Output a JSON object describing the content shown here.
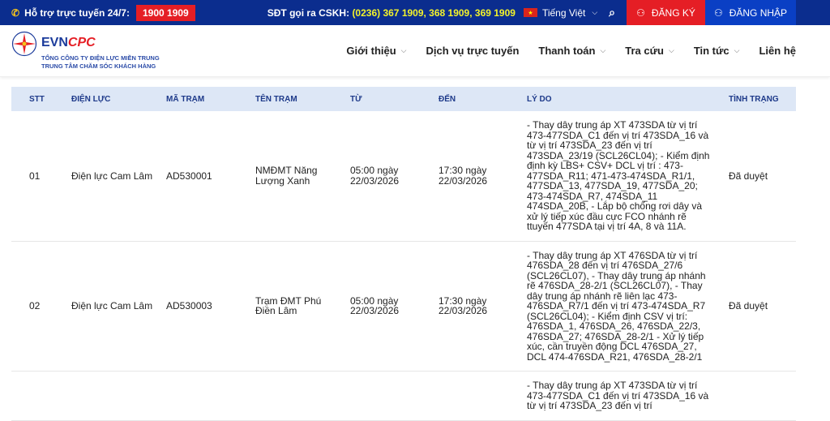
{
  "topbar": {
    "support_label": "Hỗ trợ trực tuyến 24/7:",
    "hotline": "1900 1909",
    "cskh_label": "SĐT gọi ra CSKH:",
    "cskh_numbers": "(0236) 367 1909, 368 1909, 369 1909",
    "language": "Tiếng Việt",
    "register": "ĐĂNG KÝ",
    "login": "ĐĂNG NHẬP"
  },
  "logo": {
    "brand_a": "EVN",
    "brand_b": "CPC",
    "line1": "TỔNG CÔNG TY ĐIỆN LỰC MIỀN TRUNG",
    "line2": "TRUNG TÂM CHĂM SÓC KHÁCH HÀNG"
  },
  "nav": [
    "Giới thiệu",
    "Dịch vụ trực tuyến",
    "Thanh toán",
    "Tra cứu",
    "Tin tức",
    "Liên hệ"
  ],
  "table": {
    "headers": [
      "STT",
      "ĐIỆN LỰC",
      "MÃ TRẠM",
      "TÊN TRẠM",
      "TỪ",
      "ĐẾN",
      "LÝ DO",
      "TÌNH TRẠNG"
    ],
    "rows": [
      {
        "stt": "01",
        "dienluc": "Điện lực Cam Lâm",
        "ma": "AD530001",
        "ten": "NMĐMT Năng Lượng Xanh",
        "tu": "05:00 ngày 22/03/2026",
        "den": "17:30 ngày 22/03/2026",
        "lydo": "- Thay dây trung áp XT 473SDA từ vị trí 473-477SDA_C1 đến vị trí 473SDA_16 và từ vị trí 473SDA_23 đến vị trí 473SDA_23/19 (SCL26CL04); - Kiểm định định kỳ LBS+ CSV+ DCL vị trí : 473-477SDA_R11; 471-473-474SDA_R1/1, 477SDA_13, 477SDA_19, 477SDA_20; 473-474SDA_R7, 474SDA_11 474SDA_20B, - Lắp bộ chống rơi dây và xử lý tiếp xúc đầu cực FCO nhánh rẽ ttuyến 477SDA tại vị trí 4A, 8 và 11A.",
        "tinhtrang": "Đã duyệt"
      },
      {
        "stt": "02",
        "dienluc": "Điện lực Cam Lâm",
        "ma": "AD530003",
        "ten": "Trạm ĐMT Phú Điền Lâm",
        "tu": "05:00 ngày 22/03/2026",
        "den": "17:30 ngày 22/03/2026",
        "lydo": "- Thay dây trung áp XT 476SDA từ vị trí 476SDA_28 đến vị trí 476SDA_27/6 (SCL26CL07), - Thay dây trung áp nhánh rẽ 476SDA_28-2/1 (SCL26CL07), - Thay dây trung áp nhánh rẽ liên lạc 473-476SDA_R7/1 đến vị trí 473-474SDA_R7 (SCL26CL04); - Kiểm định CSV vị trí: 476SDA_1, 476SDA_26, 476SDA_22/3, 476SDA_27; 476SDA_28-2/1 - Xử lý tiếp xúc, cần truyền động DCL 476SDA_27, DCL 474-476SDA_R21, 476SDA_28-2/1",
        "tinhtrang": "Đã duyệt"
      },
      {
        "lydo": "- Thay dây trung áp XT 473SDA từ vị trí 473-477SDA_C1 đến vị trí 473SDA_16 và từ vị trí 473SDA_23 đến vị trí"
      }
    ]
  }
}
